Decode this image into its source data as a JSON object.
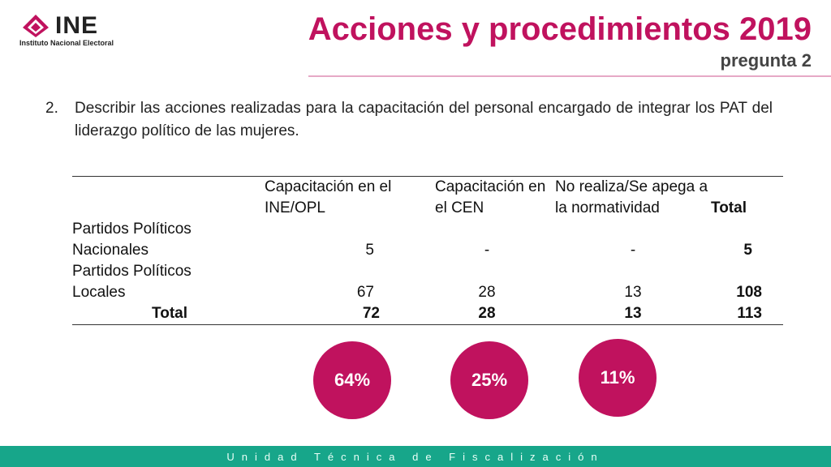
{
  "logo": {
    "name": "INE",
    "subtitle": "Instituto Nacional Electoral",
    "color": "#c0125e"
  },
  "header": {
    "title": "Acciones y procedimientos 2019",
    "subtitle": "pregunta 2"
  },
  "question": {
    "number": "2.",
    "text": "Describir las acciones realizadas para la capacitación del personal encargado de integrar los PAT del liderazgo político de las mujeres."
  },
  "table": {
    "headers": [
      "",
      "Capacitación en el INE/OPL",
      "Capacitación en el CEN",
      "No realiza/Se apega a la normatividad",
      "Total"
    ],
    "rows": [
      {
        "label_line1": "Partidos Políticos",
        "label_line2": "Nacionales",
        "v1": "5",
        "v2": "-",
        "v3": "-",
        "total": "5"
      },
      {
        "label_line1": "Partidos Políticos",
        "label_line2": "Locales",
        "v1": "67",
        "v2": "28",
        "v3": "13",
        "total": "108"
      }
    ],
    "total_row": {
      "label": "Total",
      "v1": "72",
      "v2": "28",
      "v3": "13",
      "total": "113"
    }
  },
  "percentages": [
    {
      "value": "64%"
    },
    {
      "value": "25%"
    },
    {
      "value": "11%"
    }
  ],
  "footer": {
    "text": "Unidad Técnica de Fiscalización",
    "color": "#17a68a"
  }
}
